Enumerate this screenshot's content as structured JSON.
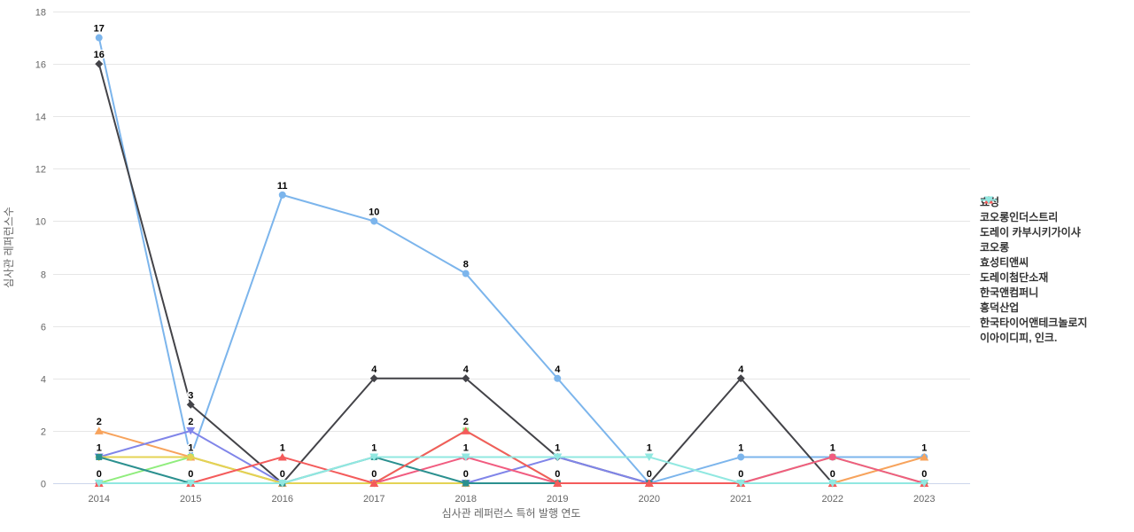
{
  "chart_data": {
    "type": "line",
    "x": [
      2014,
      2015,
      2016,
      2017,
      2018,
      2019,
      2020,
      2021,
      2022,
      2023
    ],
    "series": [
      {
        "name": "효성",
        "color": "#7cb5ec",
        "marker": "circle",
        "values": [
          17,
          1,
          11,
          10,
          8,
          4,
          0,
          1,
          1,
          1
        ]
      },
      {
        "name": "코오롱인더스트리",
        "color": "#434348",
        "marker": "diamond",
        "values": [
          16,
          3,
          0,
          4,
          4,
          1,
          0,
          4,
          0,
          0
        ]
      },
      {
        "name": "도레이 카부시키가이샤",
        "color": "#90ed7d",
        "marker": "square",
        "values": [
          0,
          1,
          0,
          0,
          2,
          0,
          0,
          0,
          1,
          0
        ]
      },
      {
        "name": "코오롱",
        "color": "#f7a35c",
        "marker": "triangle",
        "values": [
          2,
          1,
          0,
          0,
          0,
          0,
          0,
          0,
          0,
          1
        ]
      },
      {
        "name": "효성티앤씨",
        "color": "#8085e9",
        "marker": "triangle-down",
        "values": [
          1,
          2,
          0,
          0,
          0,
          1,
          0,
          0,
          0,
          0
        ]
      },
      {
        "name": "도레이첨단소재",
        "color": "#f15c80",
        "marker": "circle",
        "values": [
          0,
          0,
          0,
          0,
          1,
          0,
          0,
          0,
          1,
          0
        ]
      },
      {
        "name": "한국앤컴퍼니",
        "color": "#e4d354",
        "marker": "diamond",
        "values": [
          1,
          1,
          0,
          0,
          0,
          0,
          0,
          0,
          0,
          0
        ]
      },
      {
        "name": "흥덕산업",
        "color": "#2b908f",
        "marker": "square",
        "values": [
          1,
          0,
          0,
          1,
          0,
          0,
          0,
          0,
          0,
          0
        ]
      },
      {
        "name": "한국타이어앤테크놀로지",
        "color": "#f45b5b",
        "marker": "triangle",
        "values": [
          0,
          0,
          1,
          0,
          2,
          0,
          0,
          0,
          0,
          0
        ]
      },
      {
        "name": "이아이디피, 인크.",
        "color": "#91e8e1",
        "marker": "triangle-down",
        "values": [
          0,
          0,
          0,
          1,
          1,
          1,
          1,
          0,
          0,
          0
        ]
      }
    ],
    "xlabel": "심사관 레퍼런스 특허 발행 연도",
    "ylabel": "심사관 레퍼런스수",
    "ylim": [
      0,
      18
    ],
    "yticks": [
      0,
      2,
      4,
      6,
      8,
      10,
      12,
      14,
      16,
      18
    ],
    "grid": true,
    "legend_position": "right",
    "colors": {
      "gridline": "#e6e6e6",
      "axis_line": "#ccd6eb",
      "tick_text": "#666666",
      "label_text": "#000000",
      "legend_text": "#333333",
      "background": "#ffffff"
    }
  }
}
